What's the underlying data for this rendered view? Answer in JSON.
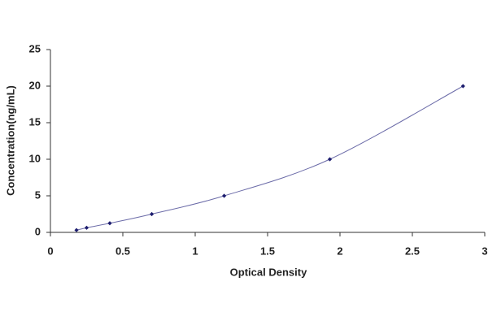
{
  "chart_data": {
    "type": "scatter",
    "xlabel": "Optical Density",
    "ylabel": "Concentration(ng/mL)",
    "x": [
      0.18,
      0.25,
      0.41,
      0.7,
      1.2,
      1.93,
      2.85
    ],
    "values": [
      0.31,
      0.63,
      1.25,
      2.5,
      5,
      10,
      20
    ],
    "color": "#1c1c6e",
    "line_color": "#6b6ba8",
    "line": true,
    "xlim": [
      0,
      3
    ],
    "xticks": [
      0,
      0.5,
      1,
      1.5,
      2,
      2.5,
      3
    ],
    "ylim": [
      0,
      25
    ],
    "yticks": [
      0,
      5,
      10,
      15,
      20,
      25
    ]
  }
}
